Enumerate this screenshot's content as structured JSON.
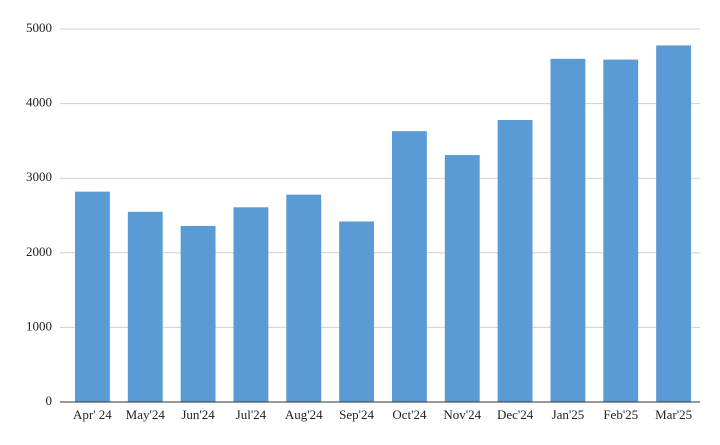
{
  "chart_data": {
    "type": "bar",
    "categories": [
      "Apr' 24",
      "May'24",
      "Jun'24",
      "Jul'24",
      "Aug'24",
      "Sep'24",
      "Oct'24",
      "Nov'24",
      "Dec'24",
      "Jan'25",
      "Feb'25",
      "Mar'25"
    ],
    "values": [
      2820,
      2550,
      2360,
      2610,
      2780,
      2420,
      3630,
      3310,
      3780,
      4600,
      4590,
      4780
    ],
    "color": "#5b9bd5",
    "ylim": [
      0,
      5000
    ],
    "yticks": [
      0,
      1000,
      2000,
      3000,
      4000,
      5000
    ],
    "grid": true
  }
}
